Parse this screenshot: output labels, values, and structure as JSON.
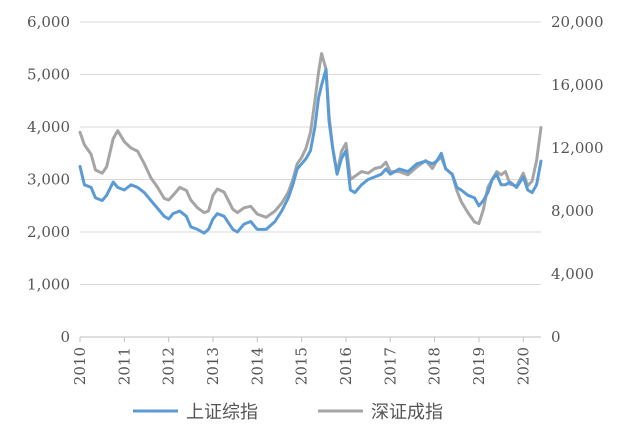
{
  "chart_data": {
    "type": "line",
    "title": "",
    "xlabel": "",
    "ylabel_left": "",
    "ylabel_right": "",
    "x_ticks": [
      "2010",
      "2011",
      "2012",
      "2013",
      "2014",
      "2015",
      "2016",
      "2017",
      "2018",
      "2019",
      "2020"
    ],
    "x_range": [
      2010.0,
      2020.4
    ],
    "y_left": {
      "range": [
        0,
        6000
      ],
      "ticks": [
        "0",
        "1,000",
        "2,000",
        "3,000",
        "4,000",
        "5,000",
        "6,000"
      ]
    },
    "y_right": {
      "range": [
        0,
        20000
      ],
      "ticks": [
        "0",
        "4,000",
        "8,000",
        "12,000",
        "16,000",
        "20,000"
      ]
    },
    "grid": "horizontal",
    "legend_position": "bottom",
    "series": [
      {
        "name": "上证综指",
        "axis": "left",
        "color": "#5b9bd5",
        "x": [
          2010.0,
          2010.1,
          2010.25,
          2010.35,
          2010.5,
          2010.6,
          2010.75,
          2010.85,
          2011.0,
          2011.15,
          2011.3,
          2011.45,
          2011.6,
          2011.75,
          2011.9,
          2012.0,
          2012.1,
          2012.25,
          2012.4,
          2012.5,
          2012.65,
          2012.8,
          2012.9,
          2013.0,
          2013.1,
          2013.25,
          2013.45,
          2013.55,
          2013.7,
          2013.85,
          2014.0,
          2014.2,
          2014.4,
          2014.55,
          2014.7,
          2014.8,
          2014.9,
          2015.0,
          2015.1,
          2015.2,
          2015.3,
          2015.38,
          2015.45,
          2015.55,
          2015.62,
          2015.7,
          2015.8,
          2015.9,
          2016.0,
          2016.1,
          2016.2,
          2016.35,
          2016.5,
          2016.65,
          2016.8,
          2016.9,
          2017.0,
          2017.2,
          2017.4,
          2017.6,
          2017.8,
          2017.95,
          2018.05,
          2018.15,
          2018.25,
          2018.4,
          2018.5,
          2018.6,
          2018.75,
          2018.9,
          2019.0,
          2019.1,
          2019.2,
          2019.3,
          2019.4,
          2019.5,
          2019.6,
          2019.7,
          2019.85,
          2020.0,
          2020.1,
          2020.2,
          2020.3,
          2020.4
        ],
        "y": [
          3250,
          2900,
          2850,
          2650,
          2600,
          2700,
          2950,
          2850,
          2800,
          2900,
          2850,
          2750,
          2600,
          2450,
          2300,
          2250,
          2350,
          2400,
          2300,
          2100,
          2050,
          1980,
          2050,
          2250,
          2350,
          2300,
          2050,
          2000,
          2150,
          2200,
          2050,
          2050,
          2200,
          2400,
          2650,
          2900,
          3200,
          3300,
          3400,
          3550,
          4000,
          4550,
          4800,
          5100,
          4100,
          3600,
          3100,
          3400,
          3550,
          2800,
          2750,
          2900,
          3000,
          3050,
          3100,
          3200,
          3100,
          3200,
          3150,
          3300,
          3350,
          3300,
          3350,
          3500,
          3200,
          3100,
          2850,
          2800,
          2700,
          2650,
          2500,
          2600,
          2750,
          3000,
          3100,
          2900,
          2900,
          2950,
          2850,
          3050,
          2800,
          2750,
          2900,
          3350
        ]
      },
      {
        "name": "深证成指",
        "axis": "right",
        "color": "#a5a5a5",
        "x": [
          2010.0,
          2010.1,
          2010.25,
          2010.35,
          2010.5,
          2010.6,
          2010.75,
          2010.85,
          2011.0,
          2011.15,
          2011.3,
          2011.45,
          2011.6,
          2011.75,
          2011.9,
          2012.0,
          2012.1,
          2012.25,
          2012.4,
          2012.5,
          2012.65,
          2012.8,
          2012.9,
          2013.0,
          2013.1,
          2013.25,
          2013.45,
          2013.55,
          2013.7,
          2013.85,
          2014.0,
          2014.2,
          2014.4,
          2014.55,
          2014.7,
          2014.8,
          2014.9,
          2015.0,
          2015.1,
          2015.2,
          2015.3,
          2015.38,
          2015.45,
          2015.55,
          2015.62,
          2015.7,
          2015.8,
          2015.9,
          2016.0,
          2016.1,
          2016.2,
          2016.35,
          2016.5,
          2016.65,
          2016.8,
          2016.9,
          2017.0,
          2017.2,
          2017.4,
          2017.6,
          2017.8,
          2017.95,
          2018.05,
          2018.15,
          2018.25,
          2018.4,
          2018.5,
          2018.6,
          2018.75,
          2018.9,
          2019.0,
          2019.1,
          2019.2,
          2019.3,
          2019.4,
          2019.5,
          2019.6,
          2019.7,
          2019.85,
          2020.0,
          2020.1,
          2020.2,
          2020.3,
          2020.4
        ],
        "y": [
          13000,
          12200,
          11600,
          10600,
          10400,
          10800,
          12600,
          13100,
          12400,
          12000,
          11800,
          11000,
          10100,
          9500,
          8800,
          8700,
          9000,
          9500,
          9300,
          8700,
          8200,
          7900,
          8000,
          9000,
          9400,
          9200,
          8100,
          7900,
          8200,
          8300,
          7800,
          7600,
          8000,
          8500,
          9200,
          10000,
          11000,
          11400,
          12000,
          13000,
          15000,
          16800,
          18000,
          17000,
          14000,
          12000,
          10400,
          11800,
          12300,
          10000,
          10200,
          10500,
          10400,
          10700,
          10800,
          11100,
          10500,
          10500,
          10300,
          10800,
          11200,
          10700,
          11200,
          11400,
          10700,
          10300,
          9300,
          8600,
          7900,
          7300,
          7200,
          8100,
          9500,
          10000,
          10500,
          10300,
          10500,
          9700,
          9600,
          10400,
          9600,
          9900,
          11200,
          13300
        ]
      }
    ]
  }
}
